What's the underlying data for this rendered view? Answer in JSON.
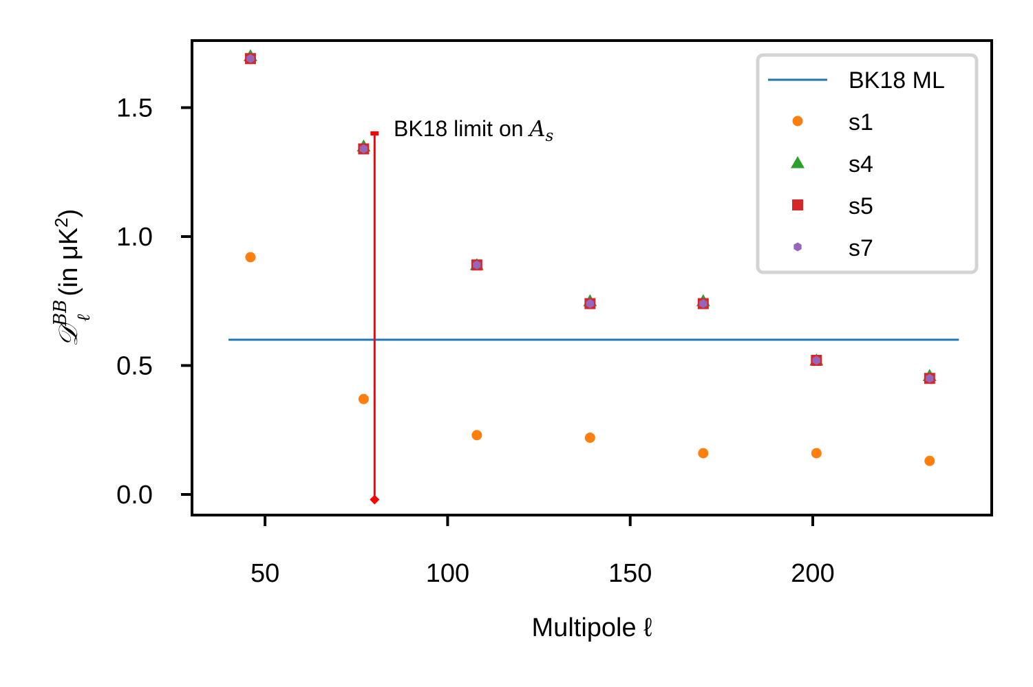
{
  "chart_data": {
    "type": "scatter",
    "xlabel": "Multipole ℓ",
    "ylabel": {
      "symbol": "𝒟",
      "superscript": "BB",
      "subscript": "ℓ",
      "text": "(in μK",
      "exponent": "2",
      "close": ")"
    },
    "xlim": [
      30,
      249
    ],
    "ylim": [
      -0.08,
      1.76
    ],
    "x_ticks": [
      50,
      100,
      150,
      200
    ],
    "x_tick_labels": [
      "50",
      "100",
      "150",
      "200"
    ],
    "y_ticks": [
      0.0,
      0.5,
      1.0,
      1.5
    ],
    "y_tick_labels": [
      "0.0",
      "0.5",
      "1.0",
      "1.5"
    ],
    "grid": false,
    "legend_position": "top-right",
    "line": {
      "name": "BK18 ML",
      "y": 0.6,
      "x_range": [
        40,
        240
      ],
      "color": "#1f77b4"
    },
    "x": [
      46,
      77,
      108,
      139,
      170,
      201,
      232
    ],
    "series": [
      {
        "name": "s1",
        "marker": "circle",
        "color": "#ff7f0e",
        "values": [
          0.92,
          0.37,
          0.23,
          0.22,
          0.16,
          0.16,
          0.13
        ]
      },
      {
        "name": "s4",
        "marker": "triangle",
        "color": "#2ca02c",
        "values": [
          1.7,
          1.35,
          0.89,
          0.75,
          0.75,
          0.52,
          0.46
        ]
      },
      {
        "name": "s5",
        "marker": "square",
        "color": "#d62728",
        "values": [
          1.69,
          1.34,
          0.89,
          0.74,
          0.74,
          0.52,
          0.45
        ]
      },
      {
        "name": "s7",
        "marker": "hexagon",
        "color": "#9467bd",
        "values": [
          1.69,
          1.34,
          0.89,
          0.74,
          0.74,
          0.52,
          0.45
        ]
      }
    ],
    "annotation": {
      "text": "BK18 limit on ",
      "math_symbol": "A",
      "math_subscript": "s",
      "arrow_x": 80,
      "arrow_y_top": 1.4,
      "arrow_y_bottom": -0.02,
      "color": "#ff0000"
    }
  }
}
